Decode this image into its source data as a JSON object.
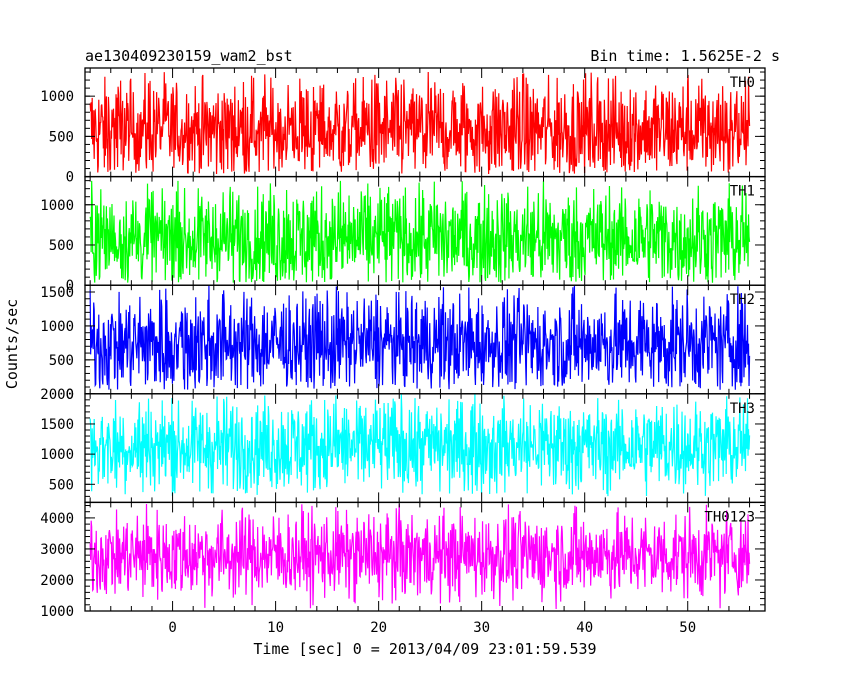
{
  "header": {
    "left": "ae130409230159_wam2_bst",
    "right": "Bin time: 1.5625E-2 s"
  },
  "chart_data": {
    "type": "line",
    "xlabel": "Time [sec] 0 = 2013/04/09 23:01:59.539",
    "ylabel": "Counts/sec",
    "xlim": [
      -8.5,
      57.5
    ],
    "data_x_range": [
      -8,
      56
    ],
    "xticks": [
      "0",
      "10",
      "20",
      "30",
      "40",
      "50"
    ],
    "panels": [
      {
        "name": "TH0",
        "color": "#ff0000",
        "ylim": [
          0,
          1350
        ],
        "yticks": [
          "0",
          "500",
          "1000"
        ],
        "base": 580,
        "spread": 330,
        "upper": 1300,
        "lower": 30
      },
      {
        "name": "TH1",
        "color": "#00ff00",
        "ylim": [
          0,
          1350
        ],
        "yticks": [
          "0",
          "500",
          "1000"
        ],
        "base": 580,
        "spread": 330,
        "upper": 1300,
        "lower": 30
      },
      {
        "name": "TH2",
        "color": "#0000ff",
        "ylim": [
          0,
          1600
        ],
        "yticks": [
          "0",
          "500",
          "1000",
          "1500"
        ],
        "base": 740,
        "spread": 380,
        "upper": 1600,
        "lower": 60
      },
      {
        "name": "TH3",
        "color": "#00ffff",
        "ylim": [
          200,
          2000
        ],
        "yticks": [
          "500",
          "1000",
          "1500",
          "2000"
        ],
        "base": 1140,
        "spread": 400,
        "upper": 2000,
        "lower": 300
      },
      {
        "name": "TH0123",
        "color": "#ff00ff",
        "ylim": [
          1000,
          4500
        ],
        "yticks": [
          "1000",
          "2000",
          "3000",
          "4000"
        ],
        "base": 2800,
        "spread": 700,
        "upper": 4450,
        "lower": 1020
      }
    ]
  }
}
